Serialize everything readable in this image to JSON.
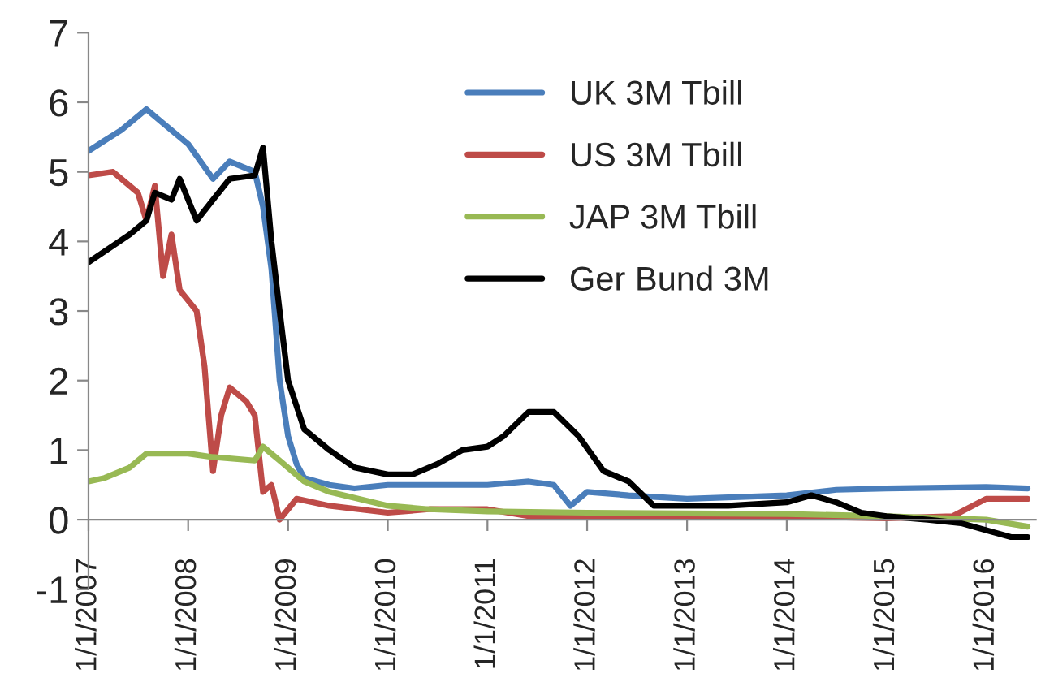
{
  "chart_data": {
    "type": "line",
    "xlim": [
      "2007-01-01",
      "2016-07-01"
    ],
    "xticks": [
      {
        "value": "2007-01-01",
        "label": "1/1/2007"
      },
      {
        "value": "2008-01-01",
        "label": "1/1/2008"
      },
      {
        "value": "2009-01-01",
        "label": "1/1/2009"
      },
      {
        "value": "2010-01-01",
        "label": "1/1/2010"
      },
      {
        "value": "2011-01-01",
        "label": "1/1/2011"
      },
      {
        "value": "2012-01-01",
        "label": "1/1/2012"
      },
      {
        "value": "2013-01-01",
        "label": "1/1/2013"
      },
      {
        "value": "2014-01-01",
        "label": "1/1/2014"
      },
      {
        "value": "2015-01-01",
        "label": "1/1/2015"
      },
      {
        "value": "2016-01-01",
        "label": "1/1/2016"
      }
    ],
    "ylim": [
      -1,
      7
    ],
    "yticks": [
      -1,
      0,
      1,
      2,
      3,
      4,
      5,
      6,
      7
    ],
    "grid": false,
    "legend": "top",
    "marker": "none",
    "line_style": "solid",
    "series": [
      {
        "name": "UK 3M Tbill",
        "color": "#4a7ebb",
        "x": [
          "2007-01",
          "2007-03",
          "2007-05",
          "2007-08",
          "2007-10",
          "2008-01",
          "2008-04",
          "2008-06",
          "2008-09",
          "2008-10",
          "2008-11",
          "2008-12",
          "2009-01",
          "2009-02",
          "2009-03",
          "2009-06",
          "2009-09",
          "2010-01",
          "2011-01",
          "2011-06",
          "2011-09",
          "2011-11",
          "2012-01",
          "2012-06",
          "2013-01",
          "2014-01",
          "2014-07",
          "2015-01",
          "2016-01",
          "2016-06"
        ],
        "values": [
          5.3,
          5.45,
          5.6,
          5.9,
          5.7,
          5.4,
          4.9,
          5.15,
          5.0,
          4.5,
          3.6,
          2.0,
          1.2,
          0.8,
          0.6,
          0.5,
          0.45,
          0.5,
          0.5,
          0.55,
          0.5,
          0.2,
          0.4,
          0.35,
          0.3,
          0.35,
          0.43,
          0.45,
          0.47,
          0.45
        ]
      },
      {
        "name": "US 3M Tbill",
        "color": "#be4b48",
        "x": [
          "2007-01",
          "2007-04",
          "2007-07",
          "2007-08",
          "2007-09",
          "2007-10",
          "2007-11",
          "2007-12",
          "2008-02",
          "2008-03",
          "2008-04",
          "2008-05",
          "2008-06",
          "2008-08",
          "2008-09",
          "2008-10",
          "2008-11",
          "2008-12",
          "2009-02",
          "2009-06",
          "2010-01",
          "2010-06",
          "2011-01",
          "2011-06",
          "2012-01",
          "2013-01",
          "2014-01",
          "2015-01",
          "2015-09",
          "2016-01",
          "2016-06"
        ],
        "values": [
          4.95,
          5.0,
          4.7,
          4.3,
          4.8,
          3.5,
          4.1,
          3.3,
          3.0,
          2.2,
          0.7,
          1.5,
          1.9,
          1.7,
          1.5,
          0.4,
          0.5,
          0.0,
          0.3,
          0.2,
          0.1,
          0.15,
          0.15,
          0.05,
          0.05,
          0.05,
          0.05,
          0.02,
          0.05,
          0.3,
          0.3
        ]
      },
      {
        "name": "JAP 3M Tbill",
        "color": "#98b954",
        "x": [
          "2007-01",
          "2007-03",
          "2007-06",
          "2007-08",
          "2008-01",
          "2008-04",
          "2008-09",
          "2008-10",
          "2008-12",
          "2009-03",
          "2009-06",
          "2010-01",
          "2010-06",
          "2011-01",
          "2012-01",
          "2014-01",
          "2015-01",
          "2016-01",
          "2016-06"
        ],
        "values": [
          0.55,
          0.6,
          0.75,
          0.95,
          0.95,
          0.9,
          0.85,
          1.05,
          0.85,
          0.55,
          0.4,
          0.2,
          0.15,
          0.12,
          0.1,
          0.08,
          0.05,
          0.0,
          -0.1
        ]
      },
      {
        "name": "Ger Bund 3M",
        "color": "#000000",
        "x": [
          "2007-01",
          "2007-06",
          "2007-08",
          "2007-09",
          "2007-11",
          "2007-12",
          "2008-02",
          "2008-04",
          "2008-06",
          "2008-09",
          "2008-10",
          "2008-11",
          "2008-12",
          "2009-01",
          "2009-03",
          "2009-06",
          "2009-09",
          "2010-01",
          "2010-04",
          "2010-07",
          "2010-10",
          "2011-01",
          "2011-03",
          "2011-06",
          "2011-09",
          "2011-12",
          "2012-03",
          "2012-06",
          "2012-09",
          "2013-01",
          "2013-06",
          "2014-01",
          "2014-04",
          "2014-07",
          "2014-10",
          "2015-01",
          "2015-06",
          "2015-10",
          "2016-01",
          "2016-04",
          "2016-06"
        ],
        "values": [
          3.7,
          4.1,
          4.3,
          4.7,
          4.6,
          4.9,
          4.3,
          4.6,
          4.9,
          4.95,
          5.35,
          4.0,
          3.0,
          2.0,
          1.3,
          1.0,
          0.75,
          0.65,
          0.65,
          0.8,
          1.0,
          1.05,
          1.2,
          1.55,
          1.55,
          1.2,
          0.7,
          0.55,
          0.2,
          0.2,
          0.2,
          0.25,
          0.35,
          0.25,
          0.1,
          0.05,
          0.0,
          -0.05,
          -0.15,
          -0.25,
          -0.25
        ]
      }
    ]
  }
}
